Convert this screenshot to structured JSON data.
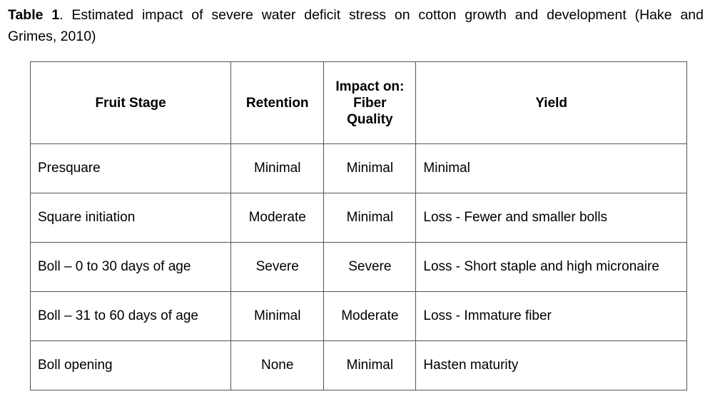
{
  "caption": {
    "label": "Table 1",
    "text_line1": ". Estimated impact of severe water deficit stress on cotton growth and development (Hake and",
    "text_line2": "Grimes, 2010)"
  },
  "table": {
    "headers": {
      "fruit_stage": "Fruit Stage",
      "retention": "Retention",
      "impact_line1": "Impact on:",
      "impact_line2": "Fiber",
      "impact_line3": "Quality",
      "yield": "Yield"
    },
    "rows": [
      {
        "stage": "Presquare",
        "retention": "Minimal",
        "impact": "Minimal",
        "yield": "Minimal"
      },
      {
        "stage": "Square initiation",
        "retention": "Moderate",
        "impact": "Minimal",
        "yield": "Loss - Fewer and smaller bolls"
      },
      {
        "stage": "Boll – 0 to 30 days of age",
        "retention": "Severe",
        "impact": "Severe",
        "yield": "Loss - Short staple and high micronaire"
      },
      {
        "stage": "Boll – 31 to 60 days of age",
        "retention": "Minimal",
        "impact": "Moderate",
        "yield": "Loss - Immature fiber"
      },
      {
        "stage": "Boll opening",
        "retention": "None",
        "impact": "Minimal",
        "yield": "Hasten maturity"
      }
    ]
  }
}
